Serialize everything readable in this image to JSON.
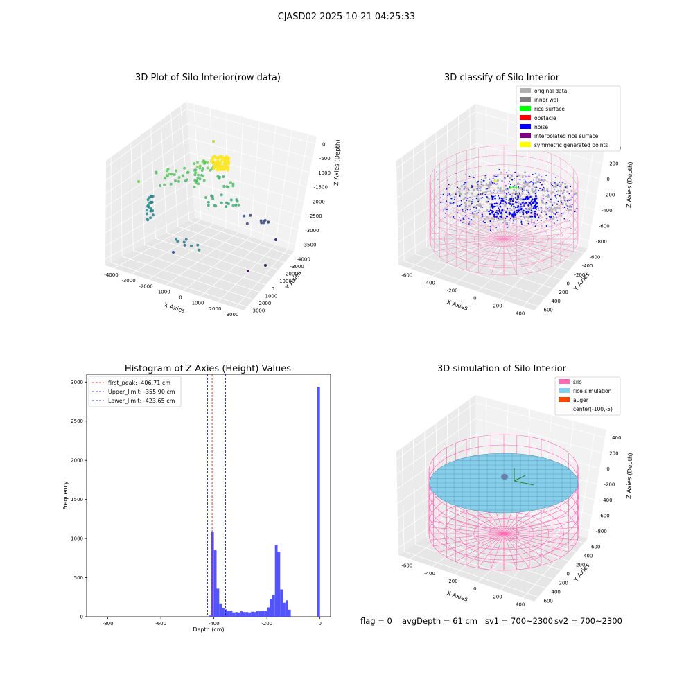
{
  "figure": {
    "suptitle": "CJASD02 2025-10-21 04:25:33",
    "status": {
      "flag": "flag = 0",
      "avg_depth": "avgDepth = 61 cm",
      "sv1": "sv1 = 700~2300",
      "sv2": "sv2 = 700~2300"
    }
  },
  "colors": {
    "original": "#b0b0b0",
    "inner_wall": "#808080",
    "rice_surface": "#00ff00",
    "obstacle": "#ff0000",
    "noise": "#0000ff",
    "interpolated": "#800080",
    "symmetric": "#ffff00",
    "silo": "#ff69b4",
    "rice_sim": "#87ceeb",
    "auger": "#ff4500",
    "hist": "#4b4bff",
    "peak": "#ff0000",
    "limit": "#0000ff"
  },
  "chart_data": [
    {
      "type": "scatter3d",
      "title": "3D Plot of Silo Interior(row data)",
      "xlabel": "X Axies",
      "ylabel": "Y Axies",
      "zlabel": "Z Axies (Depth)",
      "xticks": [
        "-4000",
        "-3000",
        "-2000",
        "-1000",
        "0",
        "1000",
        "2000",
        "3000"
      ],
      "yticks": [
        "-4000",
        "-3000",
        "-2000",
        "-1000",
        "0",
        "1000",
        "2000",
        "3000"
      ],
      "zticks": [
        "0",
        "-500",
        "-1000",
        "-1500",
        "-2000",
        "-2500",
        "-3000",
        "-3500"
      ],
      "grid": true
    },
    {
      "type": "scatter3d",
      "title": "3D classify of Silo Interior",
      "xlabel": "X Axies",
      "ylabel": "Y Axies",
      "zlabel": "Z Axies (Depth)",
      "xticks": [
        "-600",
        "-400",
        "-200",
        "0",
        "200",
        "400"
      ],
      "yticks": [
        "-600",
        "-400",
        "-200",
        "0",
        "200",
        "400",
        "600"
      ],
      "zticks": [
        "200",
        "0",
        "-200",
        "-400",
        "-600",
        "-800"
      ],
      "ztop": "400",
      "legend": {
        "position": "top-right",
        "items": [
          {
            "label": "original data",
            "color": "#b0b0b0"
          },
          {
            "label": "inner wall",
            "color": "#808080"
          },
          {
            "label": "rice surface",
            "color": "#00ff00"
          },
          {
            "label": "obstacle",
            "color": "#ff0000"
          },
          {
            "label": "noise",
            "color": "#0000ff"
          },
          {
            "label": "interpolated rice surface",
            "color": "#800080"
          },
          {
            "label": "symmetric generated points",
            "color": "#ffff00"
          }
        ]
      },
      "grid": true
    },
    {
      "type": "bar",
      "title": "Histogram of Z-Axies (Height) Values",
      "xlabel": "Depth (cm)",
      "ylabel": "Frequency",
      "xlim": [
        -880,
        40
      ],
      "ylim": [
        0,
        3100
      ],
      "xticks": [
        -800,
        -600,
        -400,
        -200,
        0
      ],
      "yticks": [
        0,
        500,
        1000,
        1500,
        2000,
        2500,
        3000
      ],
      "bin_width": 10,
      "bins": [
        {
          "x": -420,
          "y": 15
        },
        {
          "x": -410,
          "y": 1090
        },
        {
          "x": -400,
          "y": 850
        },
        {
          "x": -390,
          "y": 360
        },
        {
          "x": -380,
          "y": 170
        },
        {
          "x": -370,
          "y": 110
        },
        {
          "x": -360,
          "y": 95
        },
        {
          "x": -350,
          "y": 75
        },
        {
          "x": -340,
          "y": 80
        },
        {
          "x": -330,
          "y": 55
        },
        {
          "x": -320,
          "y": 60
        },
        {
          "x": -310,
          "y": 55
        },
        {
          "x": -300,
          "y": 70
        },
        {
          "x": -290,
          "y": 60
        },
        {
          "x": -280,
          "y": 60
        },
        {
          "x": -270,
          "y": 55
        },
        {
          "x": -260,
          "y": 65
        },
        {
          "x": -250,
          "y": 60
        },
        {
          "x": -240,
          "y": 75
        },
        {
          "x": -230,
          "y": 70
        },
        {
          "x": -220,
          "y": 80
        },
        {
          "x": -210,
          "y": 75
        },
        {
          "x": -200,
          "y": 120
        },
        {
          "x": -190,
          "y": 230
        },
        {
          "x": -180,
          "y": 280
        },
        {
          "x": -170,
          "y": 920
        },
        {
          "x": -160,
          "y": 830
        },
        {
          "x": -150,
          "y": 350
        },
        {
          "x": -140,
          "y": 180
        },
        {
          "x": -130,
          "y": 210
        },
        {
          "x": -120,
          "y": 90
        },
        {
          "x": -110,
          "y": 2940
        }
      ],
      "vlines": [
        {
          "name": "first_peak: -406.71 cm",
          "x": -406.71,
          "color": "#ff0000"
        },
        {
          "name": "Upper_limit: -355.90 cm",
          "x": -355.9,
          "color": "#0000ff"
        },
        {
          "name": "Lower_limit: -423.65 cm",
          "x": -423.65,
          "color": "#0000ff"
        }
      ],
      "legend": "top-left"
    },
    {
      "type": "surface3d",
      "title": "3D simulation of Silo Interior",
      "xlabel": "X Axies",
      "ylabel": "Y Axies",
      "zlabel": "Z Axies (Depth)",
      "xticks": [
        "-600",
        "-400",
        "-200",
        "0",
        "200",
        "400"
      ],
      "yticks": [
        "-600",
        "-400",
        "-200",
        "0",
        "200",
        "400",
        "600"
      ],
      "zticks": [
        "400",
        "200",
        "0",
        "-200",
        "-400",
        "-600",
        "-800"
      ],
      "legend": {
        "position": "top-right",
        "items": [
          {
            "label": "silo",
            "color": "#ff69b4"
          },
          {
            "label": "rice simulation",
            "color": "#87ceeb"
          },
          {
            "label": "auger",
            "color": "#ff4500"
          },
          {
            "label": "center(-100,-5)",
            "color": ""
          }
        ]
      },
      "grid": true
    }
  ]
}
